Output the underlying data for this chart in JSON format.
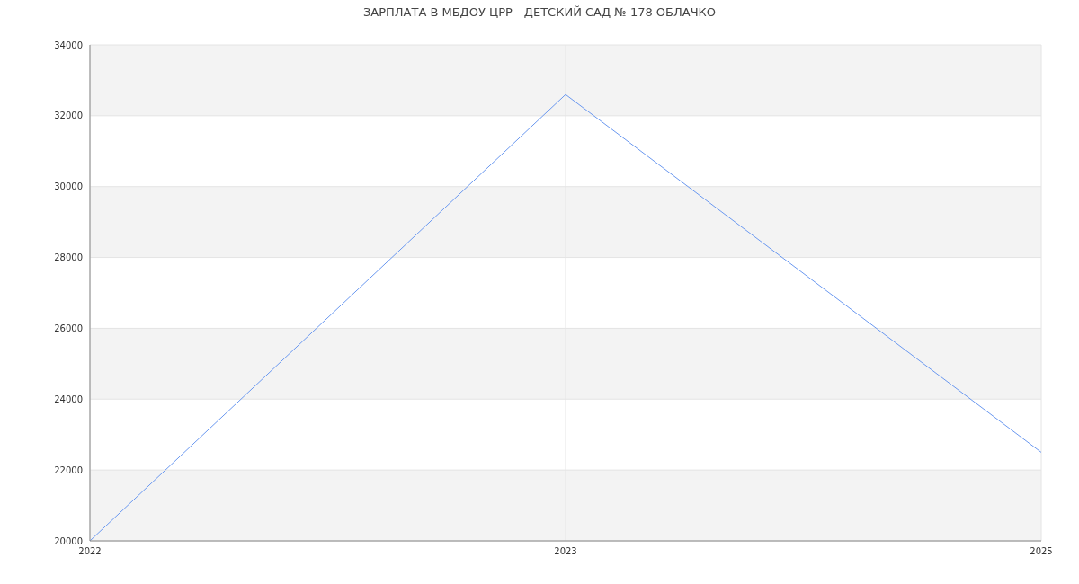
{
  "chart_data": {
    "type": "line",
    "title": "ЗАРПЛАТА В МБДОУ ЦРР - ДЕТСКИЙ САД № 178 ОБЛАЧКО",
    "categories": [
      "2022",
      "2023",
      "2025"
    ],
    "series": [
      {
        "color": "#6a98f0",
        "values": [
          20000,
          32600,
          22500
        ]
      }
    ],
    "ylim": [
      20000,
      34000
    ],
    "yticks": [
      20000,
      22000,
      24000,
      26000,
      28000,
      30000,
      32000,
      34000
    ],
    "grid": true,
    "marker": "none",
    "line_style": "solid"
  }
}
